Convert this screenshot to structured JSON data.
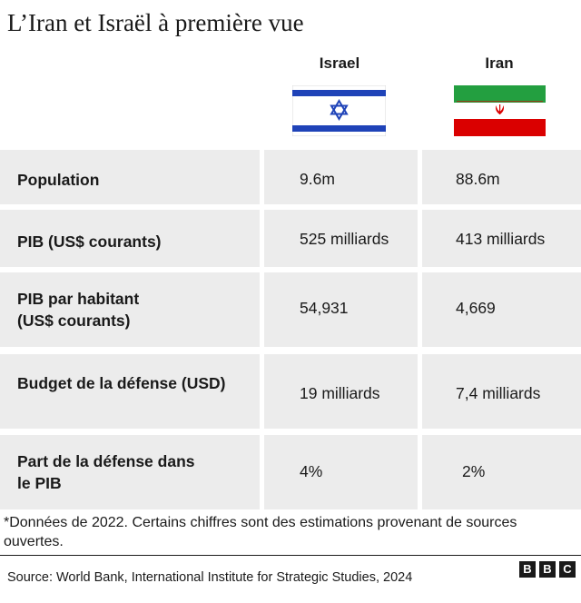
{
  "title": "L’Iran et Israël à première vue",
  "columns": [
    {
      "name": "Israel",
      "flag_icon": "israel-flag-icon"
    },
    {
      "name": "Iran",
      "flag_icon": "iran-flag-icon"
    }
  ],
  "rows": [
    {
      "label": "Population",
      "israel": "9.6m",
      "iran": "88.6m"
    },
    {
      "label": "PIB (US$ courants)",
      "israel": "525 milliards",
      "iran": "413 milliards"
    },
    {
      "label_lines": [
        "PIB par habitant",
        "(US$ courants)"
      ],
      "israel": "54,931",
      "iran": "4,669"
    },
    {
      "label": "Budget de la défense (USD)",
      "israel": "19 milliards",
      "iran": "7,4 milliards"
    },
    {
      "label_lines": [
        "Part de la défense dans",
        "le PIB"
      ],
      "israel": "4%",
      "iran": "2%"
    }
  ],
  "note": "*Données de 2022. Certains chiffres sont des estimations provenant de sources ouvertes.",
  "source": "Source: World Bank, International Institute for Strategic Studies, 2024",
  "logo": [
    "B",
    "B",
    "C"
  ],
  "colors": {
    "cell_bg": "#ececec",
    "israel_blue": "#1f43b8",
    "iran_green": "#239f40",
    "iran_red": "#da0000"
  }
}
